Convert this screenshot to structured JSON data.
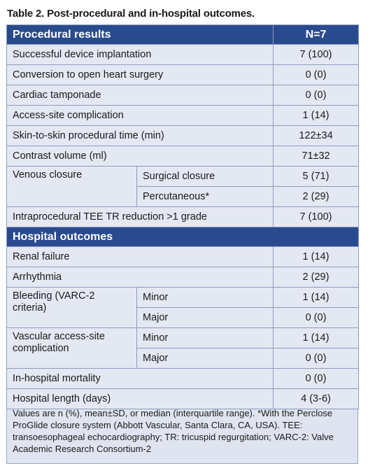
{
  "caption": "Table 2. Post-procedural and in-hospital outcomes.",
  "sections": [
    {
      "header": "Procedural results",
      "value_header": "N=7",
      "rows": [
        {
          "label": "Successful device implantation",
          "value": "7 (100)"
        },
        {
          "label": "Conversion to open heart surgery",
          "value": "0 (0)"
        },
        {
          "label": "Cardiac tamponade",
          "value": "0 (0)"
        },
        {
          "label": "Access-site complication",
          "value": "1 (14)"
        },
        {
          "label": "Skin-to-skin procedural time (min)",
          "value": "122±34"
        },
        {
          "label": "Contrast volume (ml)",
          "value": "71±32"
        },
        {
          "label": "Venous closure",
          "subrows": [
            {
              "label": "Surgical closure",
              "value": "5 (71)"
            },
            {
              "label": "Percutaneous*",
              "value": "2 (29)"
            }
          ]
        },
        {
          "label": "Intraprocedural TEE TR reduction >1 grade",
          "value": "7 (100)"
        }
      ]
    },
    {
      "header": "Hospital outcomes",
      "rows": [
        {
          "label": "Renal failure",
          "value": "1 (14)"
        },
        {
          "label": "Arrhythmia",
          "value": "2 (29)"
        },
        {
          "label": "Bleeding (VARC-2 criteria)",
          "subrows": [
            {
              "label": "Minor",
              "value": "1 (14)"
            },
            {
              "label": "Major",
              "value": "0 (0)"
            }
          ]
        },
        {
          "label": "Vascular access-site complication",
          "subrows": [
            {
              "label": "Minor",
              "value": "1 (14)"
            },
            {
              "label": "Major",
              "value": "0 (0)"
            }
          ]
        },
        {
          "label": "In-hospital mortality",
          "value": "0 (0)"
        },
        {
          "label": "Hospital length (days)",
          "value": "4 (3-6)"
        }
      ]
    }
  ],
  "footnote": "Values are n (%), mean±SD, or median (interquartile range). *With the Perclose ProGlide closure system (Abbott Vascular, Santa Clara, CA, USA). TEE: transoesophageal echocardiography; TR: tricuspid regurgitation; VARC-2: Valve Academic Research Consortium-2"
}
